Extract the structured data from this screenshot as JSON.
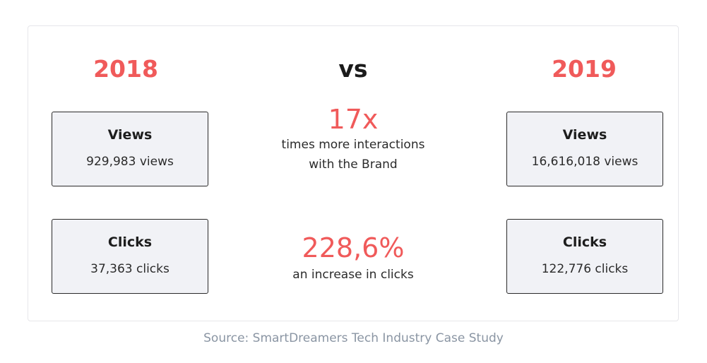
{
  "colors": {
    "accent": "#f05a5a",
    "dark": "#1b1b1b",
    "muted": "#8a95a3",
    "box_bg": "#f1f2f6"
  },
  "header": {
    "year_left": "2018",
    "vs_label": "vs",
    "year_right": "2019"
  },
  "left_column": {
    "views": {
      "title": "Views",
      "value": "929,983 views"
    },
    "clicks": {
      "title": "Clicks",
      "value": "37,363 clicks"
    }
  },
  "right_column": {
    "views": {
      "title": "Views",
      "value": "16,616,018 views"
    },
    "clicks": {
      "title": "Clicks",
      "value": "122,776 clicks"
    }
  },
  "middle": {
    "stat1": {
      "value": "17x",
      "line1": "times more interactions",
      "line2": "with the Brand"
    },
    "stat2": {
      "value": "228,6%",
      "line1": "an increase in clicks"
    }
  },
  "footer": {
    "source": "Source: SmartDreamers Tech Industry Case Study"
  }
}
